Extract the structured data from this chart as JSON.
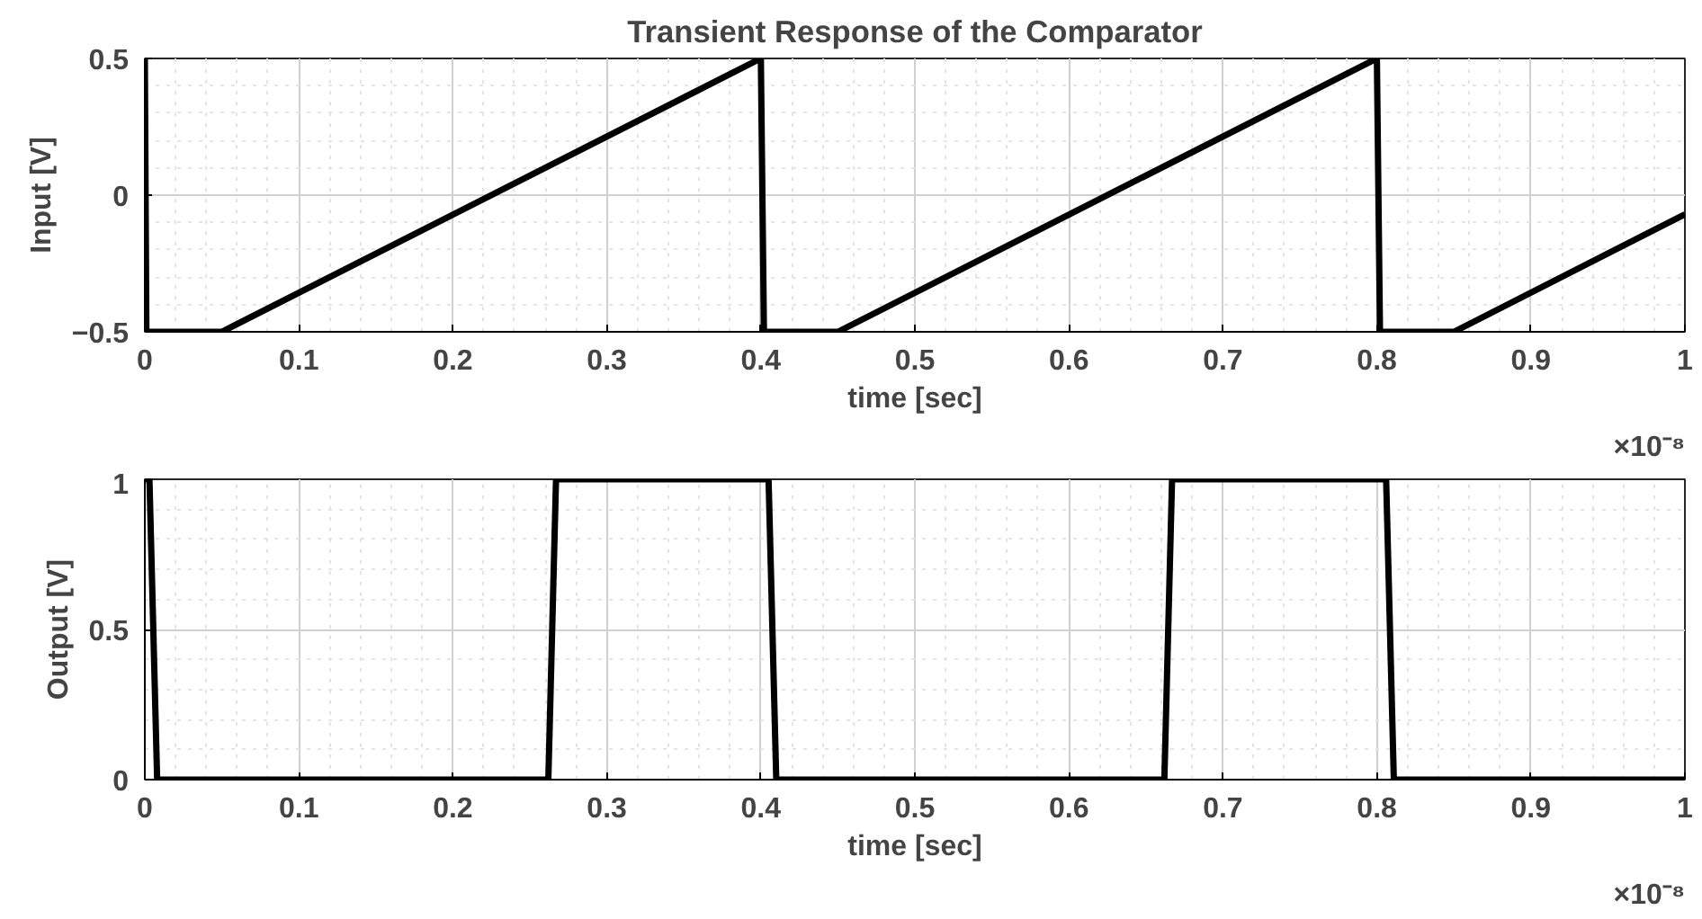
{
  "chart_data": [
    {
      "type": "line",
      "title": "Transient Response of the Comparator",
      "xlabel": "time [sec]",
      "ylabel": "Input [V]",
      "annotations": [
        "×10⁻⁸"
      ],
      "series": [
        {
          "color": "#000000",
          "x": [
            0,
            0.001,
            0.05,
            0.4,
            0.402,
            0.45,
            0.8,
            0.802,
            0.85,
            1.0
          ],
          "values": [
            0.5,
            -0.5,
            -0.5,
            0.5,
            -0.5,
            -0.5,
            0.5,
            -0.5,
            -0.5,
            -0.07
          ]
        }
      ],
      "xlim": [
        0,
        1
      ],
      "xticks": [
        0,
        0.1,
        0.2,
        0.3,
        0.4,
        0.5,
        0.6,
        0.7,
        0.8,
        0.9,
        1
      ],
      "ylim": [
        -0.5,
        0.5
      ],
      "yticks": [
        -0.5,
        0,
        0.5
      ],
      "grid": true,
      "line_style": "solid"
    },
    {
      "type": "line",
      "xlabel": "time [sec]",
      "ylabel": "Output [V]",
      "annotations": [
        "×10⁻⁸"
      ],
      "series": [
        {
          "color": "#000000",
          "x": [
            0,
            0.003,
            0.008,
            0.262,
            0.267,
            0.405,
            0.41,
            0.662,
            0.667,
            0.806,
            0.811,
            1.0
          ],
          "values": [
            1,
            1,
            0,
            0,
            1,
            1,
            0,
            0,
            1,
            1,
            0,
            0
          ]
        }
      ],
      "xlim": [
        0,
        1
      ],
      "xticks": [
        0,
        0.1,
        0.2,
        0.3,
        0.4,
        0.5,
        0.6,
        0.7,
        0.8,
        0.9,
        1
      ],
      "ylim": [
        0,
        1
      ],
      "yticks": [
        0,
        0.5,
        1
      ],
      "grid": true,
      "line_style": "solid"
    }
  ]
}
